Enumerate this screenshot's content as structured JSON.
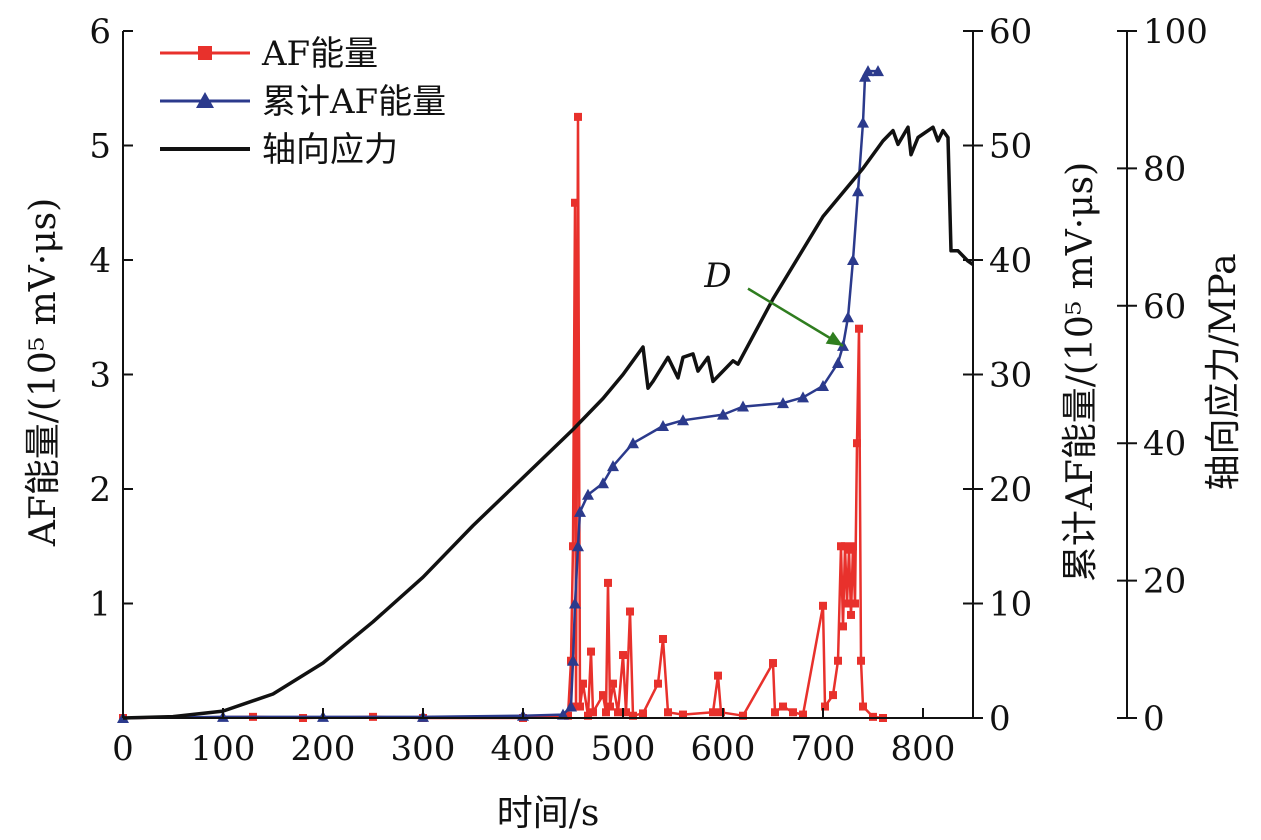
{
  "chart_data": {
    "type": "line",
    "title": "",
    "xlabel": "时间/s",
    "ylabel_left": "AF能量/(10⁵ mV·μs)",
    "ylabel_right1": "累计AF能量/(10⁵ mV·μs)",
    "ylabel_right2": "轴向应力/MPa",
    "xlim": [
      0,
      850
    ],
    "ylim_left": [
      0,
      6
    ],
    "ylim_right1": [
      0,
      60
    ],
    "ylim_right2": [
      0,
      100
    ],
    "x_ticks": [
      "0",
      "100",
      "200",
      "300",
      "400",
      "500",
      "600",
      "700",
      "800"
    ],
    "y_left_ticks": [
      "1",
      "2",
      "3",
      "4",
      "5",
      "6"
    ],
    "y_right1_ticks": [
      "0",
      "10",
      "20",
      "30",
      "40",
      "50",
      "60"
    ],
    "y_right2_ticks": [
      "0",
      "20",
      "40",
      "60",
      "80",
      "100"
    ],
    "legend": [
      {
        "name": "AF能量",
        "color": "#e8312c",
        "marker": "square"
      },
      {
        "name": "累计AF能量",
        "color": "#2b3a8c",
        "marker": "triangle"
      },
      {
        "name": "轴向应力",
        "color": "#111111",
        "marker": "none"
      }
    ],
    "annotation": {
      "text": "D",
      "color": "#2f7d1f",
      "target": [
        720,
        32.5
      ],
      "from": [
        625,
        37.5
      ]
    },
    "series": [
      {
        "name": "AF能量",
        "axis": "left",
        "color": "#e8312c",
        "points": [
          [
            0,
            0
          ],
          [
            130,
            0.01
          ],
          [
            180,
            0.0
          ],
          [
            250,
            0.01
          ],
          [
            300,
            0
          ],
          [
            400,
            0
          ],
          [
            445,
            0.02
          ],
          [
            448,
            0.5
          ],
          [
            450,
            1.5
          ],
          [
            452,
            4.5
          ],
          [
            453,
            0.1
          ],
          [
            455,
            5.25
          ],
          [
            457,
            0.1
          ],
          [
            460,
            0.3
          ],
          [
            465,
            0.02
          ],
          [
            468,
            0.58
          ],
          [
            470,
            0.05
          ],
          [
            480,
            0.2
          ],
          [
            483,
            0.05
          ],
          [
            485,
            1.18
          ],
          [
            487,
            0.1
          ],
          [
            490,
            0.3
          ],
          [
            495,
            0.05
          ],
          [
            500,
            0.55
          ],
          [
            503,
            0.05
          ],
          [
            507,
            0.93
          ],
          [
            510,
            0.02
          ],
          [
            520,
            0.04
          ],
          [
            535,
            0.3
          ],
          [
            540,
            0.69
          ],
          [
            545,
            0.05
          ],
          [
            560,
            0.03
          ],
          [
            590,
            0.05
          ],
          [
            595,
            0.37
          ],
          [
            598,
            0.05
          ],
          [
            620,
            0.02
          ],
          [
            650,
            0.48
          ],
          [
            652,
            0.05
          ],
          [
            660,
            0.1
          ],
          [
            670,
            0.05
          ],
          [
            680,
            0.03
          ],
          [
            700,
            0.98
          ],
          [
            702,
            0.1
          ],
          [
            710,
            0.2
          ],
          [
            715,
            0.5
          ],
          [
            718,
            1.5
          ],
          [
            720,
            0.8
          ],
          [
            722,
            1.5
          ],
          [
            724,
            1.0
          ],
          [
            726,
            1.47
          ],
          [
            728,
            0.9
          ],
          [
            730,
            1.5
          ],
          [
            732,
            1.0
          ],
          [
            734,
            2.4
          ],
          [
            736,
            3.4
          ],
          [
            738,
            0.5
          ],
          [
            740,
            0.1
          ],
          [
            750,
            0.01
          ],
          [
            760,
            0
          ]
        ]
      },
      {
        "name": "累计AF能量",
        "axis": "right1",
        "color": "#2b3a8c",
        "points": [
          [
            0,
            0
          ],
          [
            100,
            0.1
          ],
          [
            200,
            0.1
          ],
          [
            300,
            0.1
          ],
          [
            400,
            0.2
          ],
          [
            440,
            0.3
          ],
          [
            448,
            1.0
          ],
          [
            450,
            5.0
          ],
          [
            452,
            10.0
          ],
          [
            455,
            15.0
          ],
          [
            457,
            18.0
          ],
          [
            465,
            19.5
          ],
          [
            480,
            20.5
          ],
          [
            490,
            22.0
          ],
          [
            510,
            24.0
          ],
          [
            540,
            25.5
          ],
          [
            560,
            26.0
          ],
          [
            600,
            26.5
          ],
          [
            620,
            27.2
          ],
          [
            660,
            27.5
          ],
          [
            680,
            28.0
          ],
          [
            700,
            29.0
          ],
          [
            715,
            31.0
          ],
          [
            720,
            32.5
          ],
          [
            725,
            35.0
          ],
          [
            730,
            40.0
          ],
          [
            735,
            46.0
          ],
          [
            740,
            52.0
          ],
          [
            742,
            56.0
          ],
          [
            745,
            56.5
          ],
          [
            755,
            56.5
          ]
        ]
      },
      {
        "name": "轴向应力",
        "axis": "right2",
        "color": "#111111",
        "points": [
          [
            0,
            0
          ],
          [
            50,
            0.2
          ],
          [
            100,
            1.0
          ],
          [
            150,
            3.5
          ],
          [
            200,
            8.0
          ],
          [
            250,
            14.0
          ],
          [
            300,
            20.5
          ],
          [
            350,
            28.0
          ],
          [
            400,
            35.0
          ],
          [
            450,
            42.0
          ],
          [
            480,
            46.5
          ],
          [
            500,
            50.0
          ],
          [
            520,
            54.0
          ],
          [
            525,
            48.0
          ],
          [
            530,
            49.0
          ],
          [
            545,
            52.5
          ],
          [
            555,
            49.5
          ],
          [
            560,
            52.5
          ],
          [
            570,
            53.0
          ],
          [
            575,
            50.5
          ],
          [
            585,
            52.5
          ],
          [
            590,
            49.0
          ],
          [
            600,
            50.5
          ],
          [
            610,
            52.0
          ],
          [
            615,
            51.5
          ],
          [
            650,
            61.0
          ],
          [
            700,
            73.0
          ],
          [
            740,
            80.0
          ],
          [
            760,
            84.0
          ],
          [
            770,
            85.5
          ],
          [
            775,
            83.5
          ],
          [
            785,
            86.0
          ],
          [
            788,
            82.0
          ],
          [
            795,
            84.5
          ],
          [
            810,
            86.0
          ],
          [
            815,
            84.0
          ],
          [
            820,
            85.5
          ],
          [
            825,
            84.5
          ],
          [
            828,
            68.0
          ],
          [
            835,
            68.0
          ],
          [
            845,
            66.5
          ],
          [
            850,
            66.0
          ]
        ]
      }
    ]
  }
}
